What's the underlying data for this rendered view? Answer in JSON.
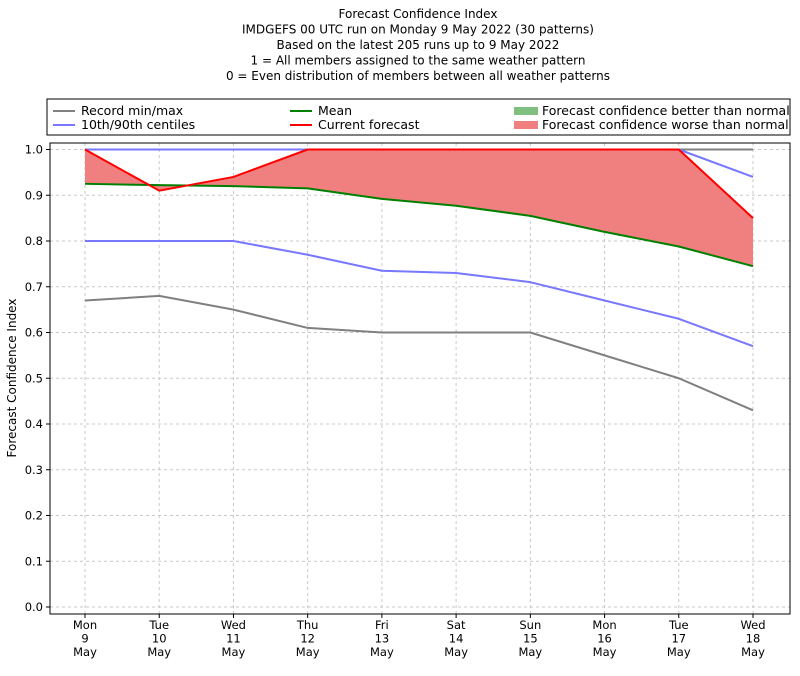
{
  "chart_data": {
    "type": "line",
    "title_lines": [
      "Forecast Confidence Index",
      "IMDGEFS 00 UTC run on Monday 9 May 2022 (30 patterns)",
      "Based on the latest 205 runs up to 9 May 2022",
      "1 = All members assigned to the same weather pattern",
      "0 = Even distribution of members between all weather patterns"
    ],
    "ylabel": "Forecast Confidence Index",
    "ylim": [
      0,
      1.0
    ],
    "yticks": [
      "0.0",
      "0.1",
      "0.2",
      "0.3",
      "0.4",
      "0.5",
      "0.6",
      "0.7",
      "0.8",
      "0.9",
      "1.0"
    ],
    "categories": [
      [
        "Mon",
        "9",
        "May"
      ],
      [
        "Tue",
        "10",
        "May"
      ],
      [
        "Wed",
        "11",
        "May"
      ],
      [
        "Thu",
        "12",
        "May"
      ],
      [
        "Fri",
        "13",
        "May"
      ],
      [
        "Sat",
        "14",
        "May"
      ],
      [
        "Sun",
        "15",
        "May"
      ],
      [
        "Mon",
        "16",
        "May"
      ],
      [
        "Tue",
        "17",
        "May"
      ],
      [
        "Wed",
        "18",
        "May"
      ]
    ],
    "grid": true,
    "legend_position": "top",
    "series": [
      {
        "name": "Record min/max",
        "key": "record_min",
        "color": "#808080",
        "values": [
          0.67,
          0.68,
          0.65,
          0.61,
          0.6,
          0.6,
          0.6,
          0.55,
          0.5,
          0.43
        ]
      },
      {
        "name": "Record min/max",
        "key": "record_max",
        "color": "#808080",
        "values": [
          1.0,
          1.0,
          1.0,
          1.0,
          1.0,
          1.0,
          1.0,
          1.0,
          1.0,
          1.0
        ]
      },
      {
        "name": "10th/90th centiles",
        "key": "p10",
        "color": "#7777ff",
        "values": [
          0.8,
          0.8,
          0.8,
          0.77,
          0.735,
          0.73,
          0.71,
          0.67,
          0.63,
          0.57
        ]
      },
      {
        "name": "10th/90th centiles",
        "key": "p90",
        "color": "#7777ff",
        "values": [
          1.0,
          1.0,
          1.0,
          1.0,
          1.0,
          1.0,
          1.0,
          1.0,
          1.0,
          0.94
        ]
      },
      {
        "name": "Mean",
        "key": "mean",
        "color": "#008000",
        "values": [
          0.925,
          0.922,
          0.92,
          0.915,
          0.892,
          0.877,
          0.855,
          0.82,
          0.788,
          0.745
        ]
      },
      {
        "name": "Current forecast",
        "key": "current",
        "color": "#ff0000",
        "values": [
          1.0,
          0.91,
          0.94,
          1.0,
          1.0,
          1.0,
          1.0,
          1.0,
          1.0,
          0.85
        ]
      }
    ],
    "fills": [
      {
        "name": "Forecast confidence better than normal",
        "color": "#7fbf7f"
      },
      {
        "name": "Forecast confidence worse than normal",
        "color": "#f08080"
      }
    ],
    "legend": [
      {
        "label": "Record min/max",
        "kind": "line",
        "color": "#808080"
      },
      {
        "label": "10th/90th centiles",
        "kind": "line",
        "color": "#7777ff"
      },
      {
        "label": "Mean",
        "kind": "line",
        "color": "#008000"
      },
      {
        "label": "Current forecast",
        "kind": "line",
        "color": "#ff0000"
      },
      {
        "label": "Forecast confidence better than normal",
        "kind": "patch",
        "color": "#7fbf7f"
      },
      {
        "label": "Forecast confidence worse than normal",
        "kind": "patch",
        "color": "#f08080"
      }
    ]
  }
}
